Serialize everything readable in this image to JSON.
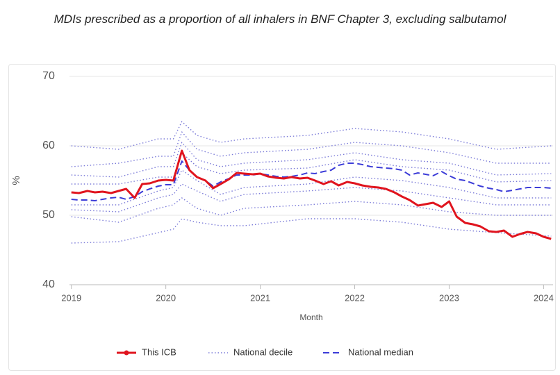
{
  "chart_data": {
    "type": "line",
    "title": "MDIs prescribed as a proportion of all inhalers in BNF Chapter 3, excluding salbutamol",
    "xlabel": "Month",
    "ylabel": "%",
    "xlim": [
      2018.98,
      2024.1
    ],
    "xticks": [
      2019,
      2020,
      2021,
      2022,
      2023,
      2024
    ],
    "ylim": [
      40,
      70
    ],
    "yticks": [
      40,
      50,
      60,
      70
    ],
    "grid": true,
    "legend": "bottom",
    "x": [
      2019.0,
      2019.08,
      2019.17,
      2019.25,
      2019.33,
      2019.42,
      2019.5,
      2019.58,
      2019.67,
      2019.75,
      2019.83,
      2019.92,
      2020.0,
      2020.08,
      2020.17,
      2020.25,
      2020.33,
      2020.42,
      2020.5,
      2020.58,
      2020.67,
      2020.75,
      2020.83,
      2020.92,
      2021.0,
      2021.08,
      2021.17,
      2021.25,
      2021.33,
      2021.42,
      2021.5,
      2021.58,
      2021.67,
      2021.75,
      2021.83,
      2021.92,
      2022.0,
      2022.08,
      2022.17,
      2022.25,
      2022.33,
      2022.42,
      2022.5,
      2022.58,
      2022.67,
      2022.75,
      2022.83,
      2022.92,
      2023.0,
      2023.08,
      2023.17,
      2023.25,
      2023.33,
      2023.42,
      2023.5,
      2023.58,
      2023.67,
      2023.75,
      2023.83,
      2023.92,
      2024.0,
      2024.08
    ],
    "series": [
      {
        "name": "This ICB",
        "color": "#e0141e",
        "style": "solid",
        "values": [
          53.3,
          53.2,
          53.5,
          53.3,
          53.4,
          53.2,
          53.5,
          53.8,
          52.5,
          54.5,
          54.6,
          55.0,
          55.1,
          55.0,
          59.3,
          56.5,
          55.5,
          55.0,
          53.9,
          54.5,
          55.2,
          56.1,
          56.0,
          55.9,
          56.0,
          55.6,
          55.4,
          55.3,
          55.5,
          55.3,
          55.4,
          55.0,
          54.5,
          54.9,
          54.3,
          54.8,
          54.6,
          54.3,
          54.1,
          54.0,
          53.8,
          53.3,
          52.7,
          52.2,
          51.4,
          51.6,
          51.8,
          51.2,
          52.0,
          49.8,
          48.9,
          48.7,
          48.4,
          47.7,
          47.6,
          47.8,
          46.9,
          47.3,
          47.6,
          47.4,
          46.9,
          46.6
        ]
      },
      {
        "name": "National decile",
        "color": "#7a7ad8",
        "style": "dotted",
        "x": [
          2019.0,
          2019.5,
          2019.92,
          2020.08,
          2020.17,
          2020.33,
          2020.58,
          2020.83,
          2021.5,
          2022.0,
          2022.5,
          2023.0,
          2023.5,
          2024.08
        ],
        "lines": [
          [
            60.0,
            59.5,
            61.0,
            61.0,
            63.5,
            61.5,
            60.5,
            61.0,
            61.5,
            62.5,
            62.0,
            61.0,
            59.5,
            60.0
          ],
          [
            57.0,
            57.5,
            58.5,
            58.5,
            62.0,
            59.5,
            58.5,
            59.0,
            59.5,
            60.5,
            60.0,
            59.0,
            57.5,
            57.5
          ],
          [
            55.8,
            55.5,
            57.0,
            57.0,
            60.5,
            58.0,
            57.0,
            57.5,
            58.0,
            59.0,
            58.0,
            57.5,
            55.8,
            56.0
          ],
          [
            54.5,
            54.5,
            55.5,
            55.5,
            59.0,
            57.0,
            56.0,
            56.5,
            56.8,
            58.0,
            57.0,
            56.5,
            54.8,
            55.0
          ],
          [
            51.5,
            51.5,
            53.5,
            54.0,
            56.5,
            55.0,
            53.0,
            54.0,
            54.5,
            55.5,
            55.0,
            54.0,
            52.5,
            52.5
          ],
          [
            50.8,
            50.5,
            52.5,
            53.0,
            54.5,
            53.5,
            52.0,
            53.0,
            53.5,
            54.0,
            53.5,
            52.5,
            51.5,
            51.5
          ],
          [
            49.8,
            49.0,
            51.0,
            51.5,
            52.5,
            51.0,
            50.0,
            51.0,
            51.5,
            52.0,
            51.5,
            50.5,
            50.0,
            50.0
          ],
          [
            46.0,
            46.2,
            47.5,
            48.0,
            49.5,
            49.0,
            48.5,
            48.5,
            49.5,
            49.5,
            49.0,
            48.0,
            47.5,
            47.0
          ]
        ]
      },
      {
        "name": "National median",
        "color": "#3c3cd8",
        "style": "dashed",
        "values": [
          52.3,
          52.2,
          52.2,
          52.1,
          52.3,
          52.5,
          52.6,
          52.3,
          52.7,
          53.4,
          53.8,
          54.2,
          54.4,
          54.4,
          57.8,
          56.5,
          55.5,
          55.0,
          54.2,
          54.8,
          55.3,
          55.8,
          55.8,
          55.8,
          56.0,
          55.8,
          55.6,
          55.5,
          55.6,
          55.8,
          56.1,
          56.0,
          56.3,
          56.5,
          57.2,
          57.5,
          57.5,
          57.3,
          57.0,
          56.9,
          56.8,
          56.7,
          56.5,
          55.8,
          56.1,
          55.9,
          55.7,
          56.3,
          55.7,
          55.2,
          55.0,
          54.6,
          54.2,
          53.9,
          53.7,
          53.4,
          53.6,
          53.8,
          54.0,
          54.0,
          54.0,
          53.9
        ]
      }
    ]
  }
}
